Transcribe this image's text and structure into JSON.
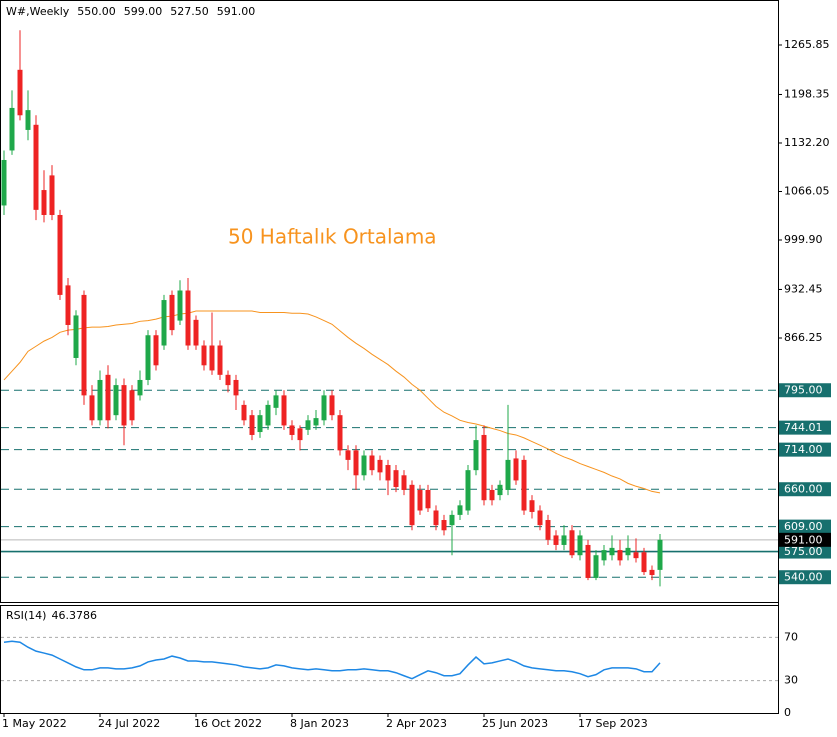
{
  "chart_data": {
    "type": "candlestick",
    "header": {
      "symbol": "W#,Weekly",
      "ohlc": [
        "550.00",
        "599.00",
        "527.50",
        "591.00"
      ]
    },
    "categories": [
      "1 May 2022",
      null,
      null,
      null,
      null,
      null,
      null,
      null,
      null,
      null,
      null,
      null,
      "24 Jul 2022",
      null,
      null,
      null,
      null,
      null,
      null,
      null,
      null,
      null,
      null,
      null,
      "16 Oct 2022",
      null,
      null,
      null,
      null,
      null,
      null,
      null,
      null,
      null,
      null,
      null,
      "8 Jan 2023",
      null,
      null,
      null,
      null,
      null,
      null,
      null,
      null,
      null,
      null,
      null,
      "2 Apr 2023",
      null,
      null,
      null,
      null,
      null,
      null,
      null,
      null,
      null,
      null,
      null,
      "25 Jun 2023",
      null,
      null,
      null,
      null,
      null,
      null,
      null,
      null,
      null,
      null,
      null,
      "17 Sep 2023",
      null,
      null,
      null,
      null,
      null,
      null,
      null,
      null,
      null,
      null
    ],
    "open": [
      1047,
      1122,
      1232,
      1150,
      1157,
      1068,
      1088,
      1034,
      938,
      839,
      925,
      788,
      754,
      816,
      761,
      802,
      795,
      788,
      809,
      870,
      856,
      925,
      890,
      931,
      891,
      856,
      856,
      856,
      816,
      809,
      775,
      761,
      738,
      747,
      771,
      788,
      747,
      743,
      741,
      747,
      754,
      788,
      761,
      713,
      713,
      679,
      706,
      700,
      693,
      686,
      679,
      666,
      659,
      659,
      631,
      618,
      611,
      625,
      631,
      686,
      734,
      659,
      652,
      659,
      702,
      700,
      645,
      631,
      618,
      597,
      584,
      604,
      570,
      584,
      539,
      563,
      570,
      577,
      570,
      574,
      574,
      550,
      550
    ],
    "high": [
      1122,
      1204,
      1286,
      1204,
      1170,
      1095,
      1102,
      1041,
      948,
      904,
      931,
      802,
      822,
      829,
      811,
      811,
      802,
      822,
      877,
      877,
      925,
      931,
      945,
      948,
      897,
      863,
      901,
      863,
      822,
      816,
      781,
      768,
      768,
      781,
      795,
      795,
      754,
      747,
      761,
      768,
      795,
      795,
      768,
      720,
      720,
      713,
      713,
      706,
      700,
      693,
      686,
      672,
      666,
      666,
      638,
      625,
      631,
      645,
      693,
      747,
      747,
      666,
      672,
      775,
      713,
      706,
      652,
      638,
      625,
      604,
      611,
      611,
      604,
      591,
      577,
      584,
      597,
      591,
      597,
      593,
      580,
      556,
      599
    ],
    "low": [
      1034,
      1116,
      1163,
      1136,
      1027,
      1024,
      1027,
      918,
      870,
      829,
      775,
      747,
      747,
      743,
      754,
      720,
      747,
      781,
      802,
      822,
      850,
      870,
      884,
      850,
      850,
      822,
      816,
      809,
      792,
      768,
      747,
      727,
      730,
      741,
      761,
      741,
      727,
      713,
      734,
      741,
      747,
      754,
      706,
      686,
      659,
      672,
      679,
      672,
      652,
      656,
      652,
      604,
      625,
      629,
      604,
      597,
      570,
      618,
      625,
      679,
      638,
      638,
      645,
      652,
      666,
      625,
      620,
      604,
      584,
      577,
      577,
      566,
      563,
      536,
      536,
      556,
      563,
      556,
      563,
      560,
      543,
      536,
      527.5
    ],
    "close": [
      1109,
      1180,
      1170,
      1177,
      1041,
      1034,
      1034,
      925,
      884,
      897,
      788,
      754,
      809,
      754,
      802,
      747,
      754,
      809,
      870,
      829,
      918,
      877,
      931,
      856,
      856,
      829,
      822,
      816,
      802,
      788,
      754,
      734,
      761,
      775,
      788,
      747,
      734,
      727,
      754,
      757,
      788,
      761,
      713,
      700,
      679,
      706,
      686,
      683,
      672,
      663,
      659,
      611,
      631,
      634,
      611,
      604,
      625,
      638,
      686,
      727,
      645,
      645,
      666,
      700,
      672,
      631,
      629,
      611,
      591,
      584,
      597,
      570,
      597,
      539,
      570,
      577,
      580,
      563,
      580,
      566,
      547,
      543,
      591
    ],
    "up_color": "#1fa84a",
    "down_color": "#ee2323",
    "ylim": [
      506.2,
      1327.2
    ],
    "yticks": [
      1265.85,
      1198.35,
      {
        "value": 1132.2,
        "label": "1132.20"
      },
      1066.05,
      {
        "value": 999.9,
        "label": "999.90"
      },
      932.45,
      866.25
    ],
    "series": [
      {
        "color": "#f7931e",
        "values": [
          809,
          821,
          833,
          848,
          855,
          862,
          867,
          874,
          877,
          878,
          880,
          881,
          881,
          882,
          884,
          885,
          886,
          889,
          890,
          892,
          895,
          896,
          899,
          900,
          903,
          903,
          903,
          903,
          903,
          903,
          903,
          903,
          901,
          901,
          901,
          901,
          900,
          900,
          899,
          895,
          890,
          885,
          876,
          867,
          859,
          852,
          844,
          837,
          830,
          821,
          813,
          803,
          795,
          784,
          773,
          765,
          760,
          754,
          751,
          749,
          746,
          743,
          740,
          736,
          734,
          730,
          725,
          720,
          715,
          709,
          704,
          700,
          695,
          691,
          687,
          683,
          678,
          674,
          668,
          664,
          661,
          657,
          655
        ]
      }
    ],
    "annotation": "50 Haftalık Ortalama",
    "levels": [
      {
        "value": 795,
        "label": "795.00",
        "style": "dashed"
      },
      {
        "value": 744.01,
        "label": "744.01",
        "style": "dashed"
      },
      {
        "value": 714,
        "label": "714.00",
        "style": "dashed"
      },
      {
        "value": 660,
        "label": "660.00",
        "style": "dashed"
      },
      {
        "value": 609,
        "label": "609.00",
        "style": "dashed"
      },
      {
        "value": 575,
        "label": "575.00",
        "style": "solid"
      },
      {
        "value": 540,
        "label": "540.00",
        "style": "dashed"
      }
    ],
    "level_color": "#17706e",
    "last_price": {
      "value": 591,
      "label": "591.00"
    },
    "rsi": {
      "title": "RSI(14)",
      "color": "#1e88e5",
      "ylim": [
        0,
        100
      ],
      "yticks": [
        70,
        30,
        0
      ],
      "values": [
        65.5,
        66.4,
        65.5,
        60.9,
        57.3,
        55.5,
        53.6,
        50,
        46.4,
        42.7,
        40,
        40,
        41.8,
        41.8,
        40.9,
        40.9,
        41.8,
        43.6,
        47.3,
        49.1,
        50,
        52.7,
        50.9,
        48.2,
        48.2,
        47.3,
        47.3,
        46.4,
        45.5,
        44.5,
        42.7,
        41.8,
        40.9,
        41.8,
        44.5,
        43.6,
        41.8,
        40.9,
        40,
        40.9,
        40,
        39.1,
        39.1,
        40,
        40,
        40.9,
        40,
        39.1,
        39.1,
        37.3,
        34.5,
        31.8,
        35.5,
        39.1,
        37.3,
        34.5,
        34.5,
        36.4,
        44.5,
        51.8,
        45.5,
        46.4,
        48.2,
        50,
        47.3,
        43.6,
        41.8,
        40.9,
        40,
        39.1,
        39.1,
        38.2,
        36.4,
        33.6,
        35.5,
        40,
        41.8,
        41.8,
        41.8,
        40.9,
        38.2,
        38.2,
        46.3786
      ]
    }
  }
}
